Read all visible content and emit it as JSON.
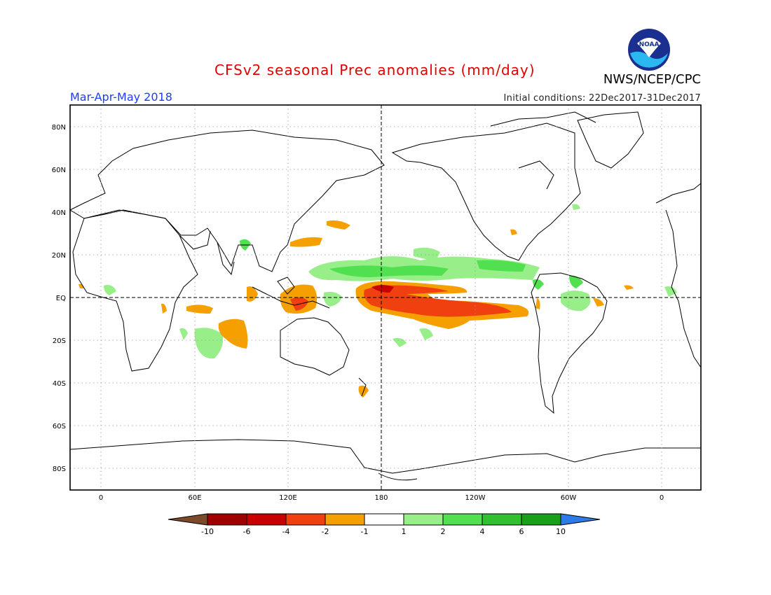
{
  "header": {
    "title": "CFSv2 seasonal Prec anomalies (mm/day)",
    "season": "Mar-Apr-May 2018",
    "initial_conditions": "Initial conditions: 22Dec2017-31Dec2017",
    "agency": "NWS/NCEP/CPC",
    "logo_text": "NOAA"
  },
  "map": {
    "lat_labels": [
      "80N",
      "60N",
      "40N",
      "20N",
      "EQ",
      "20S",
      "40S",
      "60S",
      "80S"
    ],
    "lon_labels": [
      "0",
      "60E",
      "120E",
      "180",
      "120W",
      "60W",
      "0"
    ]
  },
  "colorbar": {
    "labels": [
      "-10",
      "-6",
      "-4",
      "-2",
      "-1",
      "1",
      "2",
      "4",
      "6",
      "10"
    ],
    "colors": [
      "#7a4a2a",
      "#a00000",
      "#c80000",
      "#f04010",
      "#f5a000",
      "#ffffff",
      "#98ee88",
      "#50e050",
      "#30c030",
      "#18a018",
      "#2d7be8"
    ]
  },
  "colors": {
    "title": "#e00000",
    "season": "#1e3cff",
    "wet": "#50e050",
    "dry": "#f5a000",
    "strong_dry": "#e04010"
  }
}
